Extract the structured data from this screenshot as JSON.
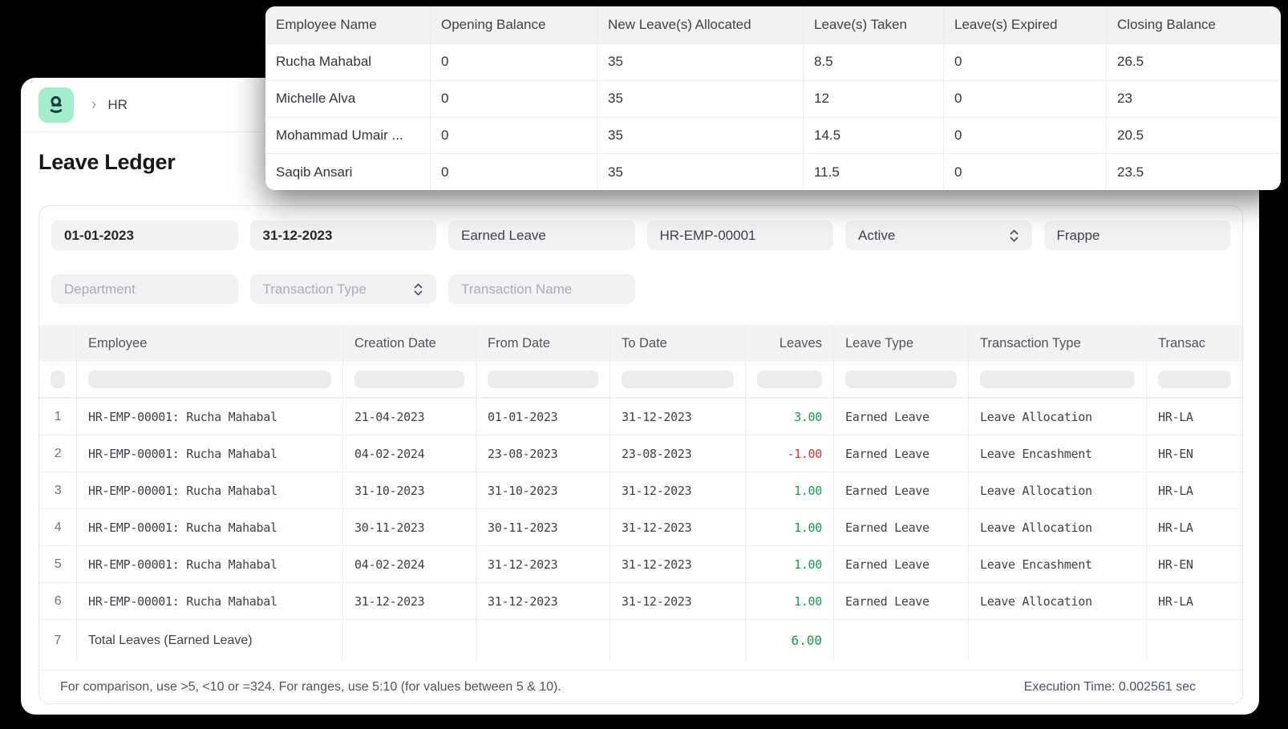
{
  "colors": {
    "positive": "#1a9c4c",
    "negative": "#e03131",
    "logo_bg": "#a4ecca",
    "logo_glyph": "#173f46"
  },
  "header": {
    "breadcrumb_separator": "›",
    "breadcrumb": "HR",
    "title": "Leave Ledger"
  },
  "summary_table": {
    "columns": [
      "Employee Name",
      "Opening Balance",
      "New Leave(s) Allocated",
      "Leave(s) Taken",
      "Leave(s) Expired",
      "Closing Balance"
    ],
    "rows": [
      [
        "Rucha Mahabal",
        "0",
        "35",
        "8.5",
        "0",
        "26.5"
      ],
      [
        "Michelle Alva",
        "0",
        "35",
        "12",
        "0",
        "23"
      ],
      [
        "Mohammad Umair ...",
        "0",
        "35",
        "14.5",
        "0",
        "20.5"
      ],
      [
        "Saqib Ansari",
        "0",
        "35",
        "11.5",
        "0",
        "23.5"
      ]
    ]
  },
  "filters": {
    "row1": [
      {
        "name": "from-date-filter",
        "value": "01-01-2023",
        "style": "value-bold",
        "select": false
      },
      {
        "name": "to-date-filter",
        "value": "31-12-2023",
        "style": "value-bold",
        "select": false
      },
      {
        "name": "leave-type-filter",
        "value": "Earned Leave",
        "style": "value",
        "select": false
      },
      {
        "name": "employee-filter",
        "value": "HR-EMP-00001",
        "style": "value",
        "select": false
      },
      {
        "name": "employee-status-filter",
        "value": "Active",
        "style": "value",
        "select": true
      },
      {
        "name": "company-filter",
        "value": "Frappe",
        "style": "value",
        "select": false
      }
    ],
    "row2": [
      {
        "name": "department-filter",
        "value": "Department",
        "style": "placeholder",
        "select": false
      },
      {
        "name": "transaction-type-filter",
        "value": "Transaction Type",
        "style": "placeholder",
        "select": true
      },
      {
        "name": "transaction-name-filter",
        "value": "Transaction Name",
        "style": "placeholder",
        "select": false
      }
    ]
  },
  "report_table": {
    "columns": [
      "",
      "Employee",
      "Creation Date",
      "From Date",
      "To Date",
      "Leaves",
      "Leave Type",
      "Transaction Type",
      "Transac"
    ],
    "rows": [
      {
        "num": "1",
        "employee": "HR-EMP-00001: Rucha Mahabal",
        "creation_date": "21-04-2023",
        "from_date": "01-01-2023",
        "to_date": "31-12-2023",
        "leaves": "3.00",
        "leaves_sign": "positive",
        "leave_type": "Earned Leave",
        "transaction_type": "Leave Allocation",
        "transaction_name": "HR-LA"
      },
      {
        "num": "2",
        "employee": "HR-EMP-00001: Rucha Mahabal",
        "creation_date": "04-02-2024",
        "from_date": "23-08-2023",
        "to_date": "23-08-2023",
        "leaves": "-1.00",
        "leaves_sign": "negative",
        "leave_type": "Earned Leave",
        "transaction_type": "Leave Encashment",
        "transaction_name": "HR-EN"
      },
      {
        "num": "3",
        "employee": "HR-EMP-00001: Rucha Mahabal",
        "creation_date": "31-10-2023",
        "from_date": "31-10-2023",
        "to_date": "31-12-2023",
        "leaves": "1.00",
        "leaves_sign": "positive",
        "leave_type": "Earned Leave",
        "transaction_type": "Leave Allocation",
        "transaction_name": "HR-LA"
      },
      {
        "num": "4",
        "employee": "HR-EMP-00001: Rucha Mahabal",
        "creation_date": "30-11-2023",
        "from_date": "30-11-2023",
        "to_date": "31-12-2023",
        "leaves": "1.00",
        "leaves_sign": "positive",
        "leave_type": "Earned Leave",
        "transaction_type": "Leave Allocation",
        "transaction_name": "HR-LA"
      },
      {
        "num": "5",
        "employee": "HR-EMP-00001: Rucha Mahabal",
        "creation_date": "04-02-2024",
        "from_date": "31-12-2023",
        "to_date": "31-12-2023",
        "leaves": "1.00",
        "leaves_sign": "positive",
        "leave_type": "Earned Leave",
        "transaction_type": "Leave Encashment",
        "transaction_name": "HR-EN"
      },
      {
        "num": "6",
        "employee": "HR-EMP-00001: Rucha Mahabal",
        "creation_date": "31-12-2023",
        "from_date": "31-12-2023",
        "to_date": "31-12-2023",
        "leaves": "1.00",
        "leaves_sign": "positive",
        "leave_type": "Earned Leave",
        "transaction_type": "Leave Allocation",
        "transaction_name": "HR-LA"
      }
    ],
    "total_row": {
      "num": "7",
      "label": "Total Leaves (Earned Leave)",
      "leaves": "6.00",
      "leaves_sign": "positive"
    }
  },
  "footer": {
    "hint": "For comparison, use >5, <10 or =324. For ranges, use 5:10 (for values between 5 & 10).",
    "execution_time": "Execution Time: 0.002561 sec"
  }
}
